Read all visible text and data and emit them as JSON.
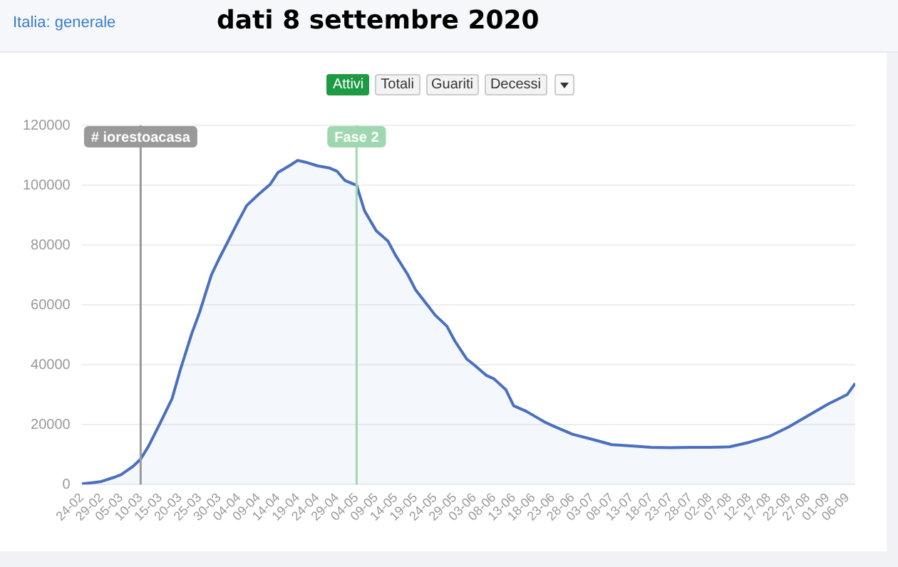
{
  "chart_data": {
    "type": "area",
    "title": "dati 8 settembre 2020",
    "subtitle": "Italia: generale",
    "annotations": [
      "Attivi",
      "Totali",
      "Guariti",
      "Decessi"
    ],
    "x": [
      "--02-24",
      "--02-27",
      "--02-29",
      "--03-03",
      "--03-05",
      "--03-08",
      "--03-10",
      "--03-12",
      "--03-15",
      "--03-18",
      "--03-20",
      "--03-23",
      "--03-25",
      "--03-28",
      "--03-30",
      "--04-01",
      "--04-04",
      "--04-06",
      "--04-09",
      "--04-12",
      "--04-14",
      "--04-17",
      "--04-19",
      "--04-21",
      "--04-24",
      "--04-27",
      "--04-29",
      "--05-01",
      "--05-04",
      "--05-06",
      "--05-09",
      "--05-12",
      "--05-14",
      "--05-17",
      "--05-19",
      "--05-22",
      "--05-24",
      "--05-27",
      "--05-29",
      "--06-01",
      "--06-03",
      "--06-06",
      "--06-08",
      "--06-11",
      "--06-13",
      "--06-16",
      "--06-18",
      "--06-21",
      "--06-23",
      "--06-28",
      "--07-03",
      "--07-08",
      "--07-13",
      "--07-18",
      "--07-23",
      "--07-28",
      "--08-02",
      "--08-07",
      "--08-12",
      "--08-17",
      "--08-22",
      "--08-27",
      "--09-01",
      "--09-04",
      "--09-06",
      "--09-08"
    ],
    "series": [
      {
        "color": "#4a6fbf",
        "values": [
          200,
          650,
          1000,
          2300,
          3300,
          6000,
          8500,
          12800,
          20600,
          28700,
          37900,
          50400,
          57500,
          70000,
          75500,
          80600,
          88300,
          93200,
          96900,
          100300,
          104300,
          106600,
          108300,
          107700,
          106500,
          105800,
          104700,
          101600,
          100000,
          91500,
          84800,
          81300,
          76400,
          70200,
          65100,
          60000,
          56600,
          52900,
          48000,
          42000,
          39900,
          36500,
          35300,
          31700,
          26300,
          24600,
          23100,
          20800,
          19600,
          16800,
          15100,
          13300,
          12900,
          12400,
          12300,
          12400,
          12400,
          12600,
          14100,
          16000,
          19200,
          23000,
          26800,
          28800,
          30100,
          33800
        ]
      }
    ],
    "xlim": [
      "--02-24",
      "--09-08"
    ],
    "xticks": [
      {
        "value": "--02-24",
        "label": "24-02"
      },
      {
        "value": "--02-29",
        "label": "29-02"
      },
      {
        "value": "--03-05",
        "label": "05-03"
      },
      {
        "value": "--03-10",
        "label": "10-03"
      },
      {
        "value": "--03-15",
        "label": "15-03"
      },
      {
        "value": "--03-20",
        "label": "20-03"
      },
      {
        "value": "--03-25",
        "label": "25-03"
      },
      {
        "value": "--03-30",
        "label": "30-03"
      },
      {
        "value": "--04-04",
        "label": "04-04"
      },
      {
        "value": "--04-09",
        "label": "09-04"
      },
      {
        "value": "--04-14",
        "label": "14-04"
      },
      {
        "value": "--04-19",
        "label": "19-04"
      },
      {
        "value": "--04-24",
        "label": "24-04"
      },
      {
        "value": "--04-29",
        "label": "29-04"
      },
      {
        "value": "--05-04",
        "label": "04-05"
      },
      {
        "value": "--05-09",
        "label": "09-05"
      },
      {
        "value": "--05-14",
        "label": "14-05"
      },
      {
        "value": "--05-19",
        "label": "19-05"
      },
      {
        "value": "--05-24",
        "label": "24-05"
      },
      {
        "value": "--05-29",
        "label": "29-05"
      },
      {
        "value": "--06-03",
        "label": "03-06"
      },
      {
        "value": "--06-08",
        "label": "08-06"
      },
      {
        "value": "--06-13",
        "label": "13-06"
      },
      {
        "value": "--06-18",
        "label": "18-06"
      },
      {
        "value": "--06-23",
        "label": "23-06"
      },
      {
        "value": "--06-28",
        "label": "28-06"
      },
      {
        "value": "--07-03",
        "label": "03-07"
      },
      {
        "value": "--07-08",
        "label": "08-07"
      },
      {
        "value": "--07-13",
        "label": "13-07"
      },
      {
        "value": "--07-18",
        "label": "18-07"
      },
      {
        "value": "--07-23",
        "label": "23-07"
      },
      {
        "value": "--07-28",
        "label": "28-07"
      },
      {
        "value": "--08-02",
        "label": "02-08"
      },
      {
        "value": "--08-07",
        "label": "07-08"
      },
      {
        "value": "--08-12",
        "label": "12-08"
      },
      {
        "value": "--08-17",
        "label": "17-08"
      },
      {
        "value": "--08-22",
        "label": "22-08"
      },
      {
        "value": "--08-27",
        "label": "27-08"
      },
      {
        "value": "--09-01",
        "label": "01-09"
      },
      {
        "value": "--09-06",
        "label": "06-09"
      }
    ],
    "ylim": [
      0,
      120000
    ],
    "yticks": [
      0,
      20000,
      40000,
      60000,
      80000,
      100000,
      120000
    ],
    "ref_lines": [
      {
        "axis": "x",
        "value": "--03-10",
        "label": "# iorestoacasa",
        "color": "#999999"
      },
      {
        "axis": "x",
        "value": "--05-04",
        "label": "Fase 2",
        "color": "#9fd8b0"
      }
    ],
    "grid": "y",
    "marker": "none",
    "line_style": "solid",
    "legend": false
  }
}
